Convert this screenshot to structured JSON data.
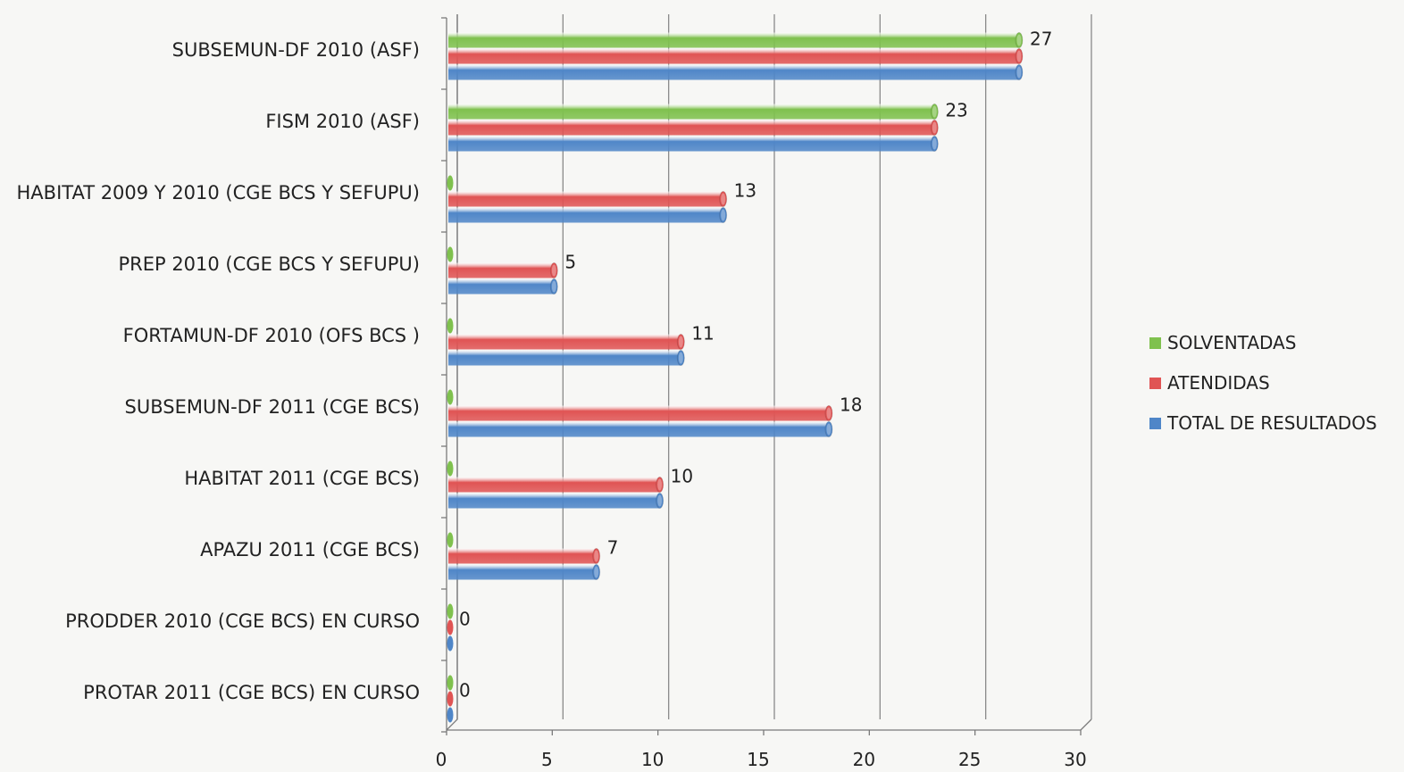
{
  "chart_data": {
    "type": "bar",
    "orientation": "horizontal",
    "title": "",
    "xlabel": "",
    "ylabel": "",
    "xlim": [
      0,
      30
    ],
    "x_ticks": [
      0,
      5,
      10,
      15,
      20,
      25,
      30
    ],
    "grid": true,
    "legend_position": "right",
    "categories": [
      "SUBSEMUN-DF 2010 (ASF)",
      "FISM 2010 (ASF)",
      "HABITAT 2009 Y 2010 (CGE BCS Y SEFUPU)",
      "PREP 2010 (CGE BCS Y SEFUPU)",
      "FORTAMUN-DF 2010 (OFS BCS )",
      "SUBSEMUN-DF 2011 (CGE BCS)",
      "HABITAT 2011 (CGE BCS)",
      "APAZU 2011 (CGE BCS)",
      "PRODDER 2010 (CGE BCS) EN CURSO",
      "PROTAR 2011 (CGE BCS) EN CURSO"
    ],
    "series": [
      {
        "name": "SOLVENTADAS",
        "color": "#7fc14e",
        "values": [
          27,
          23,
          0,
          0,
          0,
          0,
          0,
          0,
          0,
          0
        ]
      },
      {
        "name": "ATENDIDAS",
        "color": "#e05454",
        "values": [
          27,
          23,
          13,
          5,
          11,
          18,
          10,
          7,
          0,
          0
        ]
      },
      {
        "name": "TOTAL DE RESULTADOS",
        "color": "#4f86c8",
        "values": [
          27,
          23,
          13,
          5,
          11,
          18,
          10,
          7,
          0,
          0
        ]
      }
    ],
    "data_labels": [
      "27",
      "23",
      "13",
      "5",
      "11",
      "18",
      "10",
      "7",
      "0",
      "0"
    ]
  }
}
